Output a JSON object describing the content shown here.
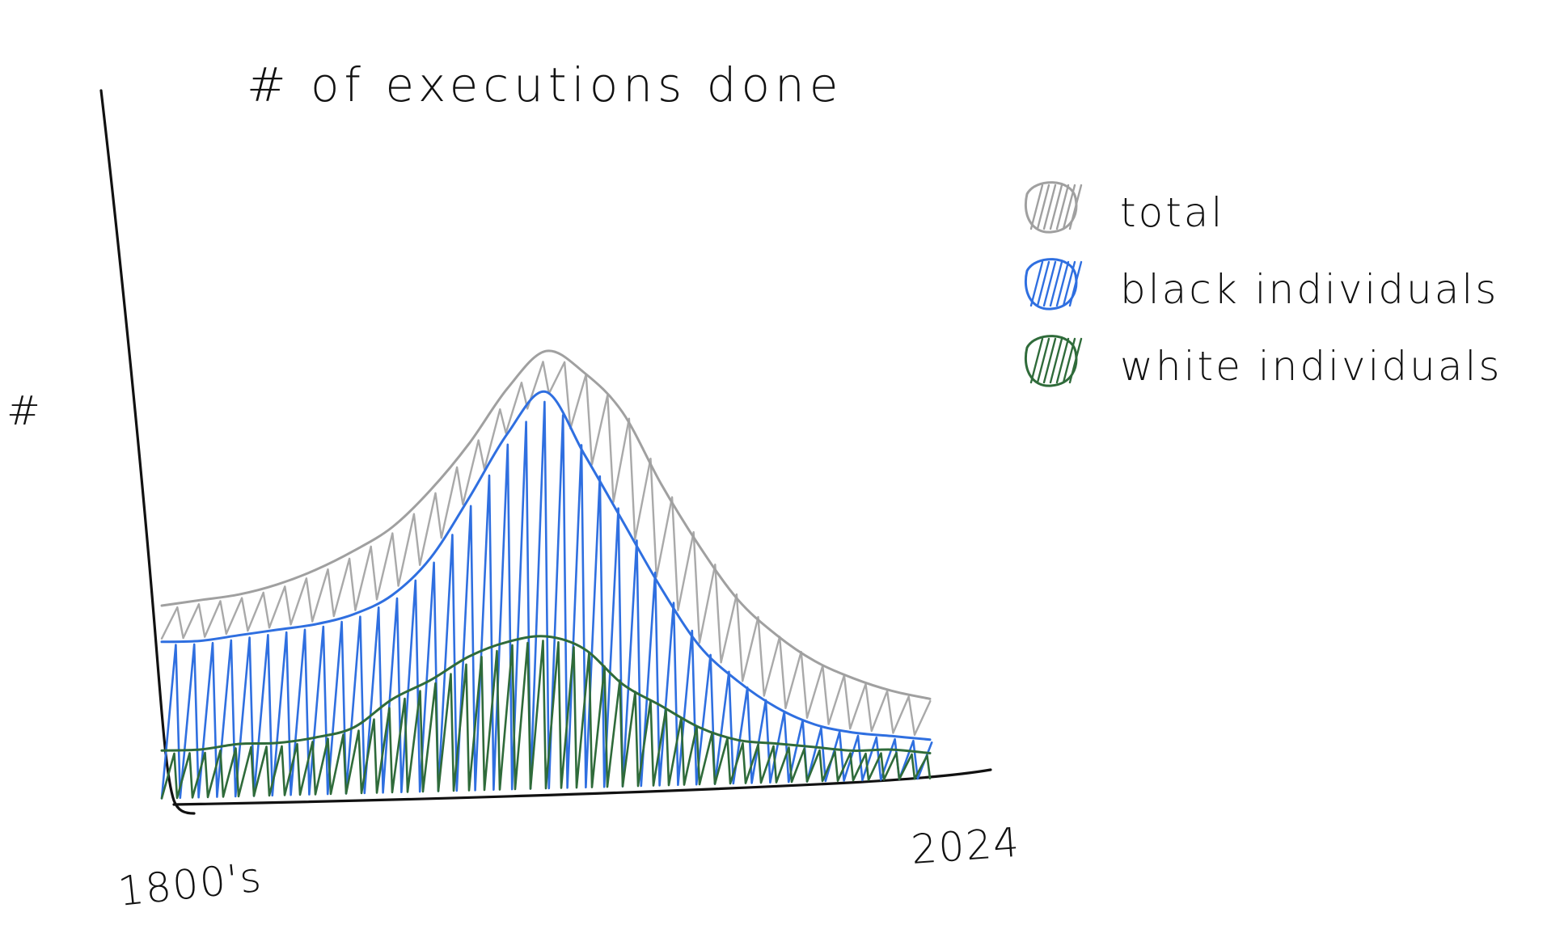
{
  "chart_data": {
    "type": "area",
    "style": "hand-drawn sketch with hatched fills",
    "title": "# of executions done",
    "ylabel": "#",
    "xlabel": "",
    "x_start_label": "1800's",
    "x_end_label": "2024",
    "y_tick_labels": false,
    "grid": false,
    "legend_position": "top-right",
    "ylim": [
      0,
      100
    ],
    "x": [
      0,
      0.05,
      0.1,
      0.15,
      0.2,
      0.25,
      0.3,
      0.35,
      0.4,
      0.45,
      0.5,
      0.55,
      0.6,
      0.65,
      0.7,
      0.75,
      0.8,
      0.85,
      0.9,
      0.95,
      1.0
    ],
    "series": [
      {
        "name": "total",
        "color": "#a0a0a0",
        "values": [
          44,
          45,
          46,
          48,
          51,
          55,
          60,
          68,
          78,
          90,
          98,
          93,
          84,
          68,
          54,
          42,
          34,
          28,
          24,
          21,
          19
        ]
      },
      {
        "name": "black individuals",
        "color": "#2f6fe0",
        "values": [
          36,
          36,
          37,
          38,
          39,
          41,
          45,
          53,
          66,
          80,
          89,
          75,
          60,
          45,
          32,
          24,
          18,
          14,
          12,
          11,
          10
        ]
      },
      {
        "name": "white individuals",
        "color": "#2f6b3a",
        "values": [
          12,
          12,
          13,
          13,
          14,
          16,
          22,
          26,
          31,
          34,
          35,
          32,
          24,
          19,
          14,
          11,
          10,
          9,
          8,
          8,
          7
        ]
      }
    ]
  },
  "ink_color": "#111111"
}
